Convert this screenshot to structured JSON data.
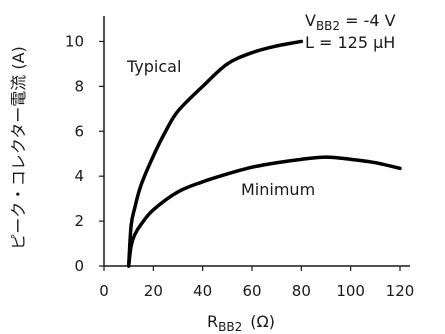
{
  "chart_data": {
    "type": "line",
    "x": [
      10,
      20,
      30,
      40,
      50,
      60,
      70,
      80,
      90,
      100,
      110,
      120
    ],
    "series": [
      {
        "name": "Typical",
        "x": [
          10,
          11,
          12.5,
          15,
          20,
          25,
          30,
          40,
          50,
          60,
          70,
          80
        ],
        "values": [
          0,
          1.8,
          2.6,
          3.6,
          4.9,
          6.0,
          6.9,
          8.0,
          9.0,
          9.5,
          9.8,
          10.0
        ]
      },
      {
        "name": "Minimum",
        "x": [
          10,
          11,
          12.5,
          15,
          20,
          30,
          40,
          50,
          60,
          70,
          80,
          90,
          100,
          110,
          120
        ],
        "values": [
          0,
          0.9,
          1.4,
          1.85,
          2.5,
          3.3,
          3.75,
          4.1,
          4.4,
          4.6,
          4.75,
          4.85,
          4.75,
          4.6,
          4.35
        ]
      }
    ],
    "xlabel": {
      "main": "R",
      "sub": "BB2",
      "unit": "(Ω)"
    },
    "ylabel": "ピーク・コレクター電流 (A)",
    "xlim": [
      0,
      120
    ],
    "ylim": [
      0,
      11
    ],
    "xticks": [
      "0",
      "20",
      "40",
      "60",
      "80",
      "100",
      "120"
    ],
    "yticks": [
      "0",
      "2",
      "4",
      "6",
      "8",
      "10"
    ],
    "xtick_values": [
      0,
      20,
      40,
      60,
      80,
      100,
      120
    ],
    "ytick_values": [
      0,
      2,
      4,
      6,
      8,
      10
    ],
    "annotations": {
      "vbb2_main": "V",
      "vbb2_sub": "BB2",
      "vbb2_value": " = -4 V",
      "inductance": "L = 125 μH"
    },
    "grid": false,
    "line_color": "#000000"
  }
}
